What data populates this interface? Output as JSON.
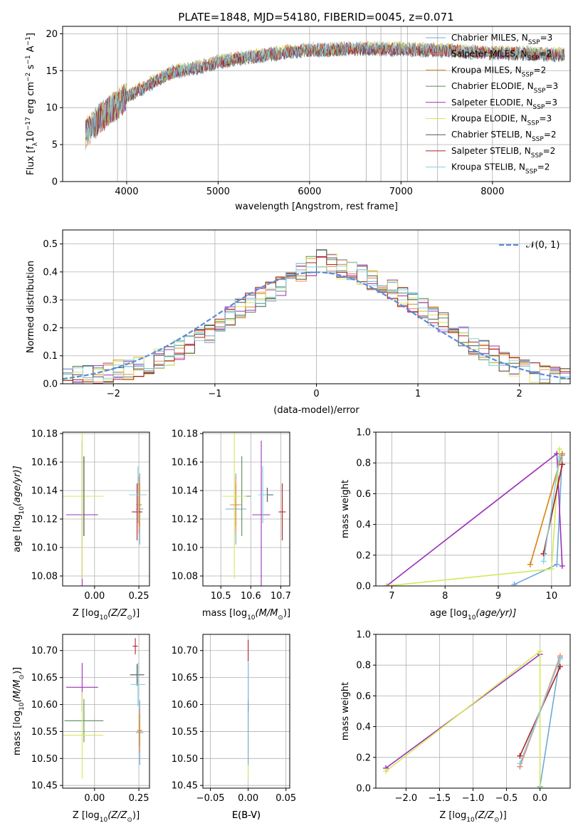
{
  "figure": {
    "title": "PLATE=1848, MJD=54180, FIBERID=0045, z=0.071"
  },
  "colors": {
    "Chabrier MILES": "#6fa8dc",
    "Salpeter MILES": "#f08a60",
    "Kroupa MILES": "#d98c1a",
    "Chabrier ELODIE": "#5c8a5c",
    "Salpeter ELODIE": "#9b30b8",
    "Kroupa ELODIE": "#d4e85a",
    "Chabrier STELIB": "#555555",
    "Salpeter STELIB": "#b22222",
    "Kroupa STELIB": "#88cfe0",
    "normal_curve": "#5b8bd6"
  },
  "chart_data": [
    {
      "id": "spectrum",
      "type": "line",
      "xlabel": "wavelength [Angstrom, rest frame]",
      "ylabel": "Flux [f",
      "ylabel_sub": "λ",
      "ylabel_rest": "10",
      "ylabel_sup1": "−17",
      "ylabel_tail": " erg cm",
      "ylabel_sup2": "−2",
      "ylabel_s": " s",
      "ylabel_sup3": "−1",
      "ylabel_A": " A",
      "ylabel_sup4": "−1",
      "ylabel_close": "]",
      "xlim": [
        3300,
        8850
      ],
      "ylim": [
        0,
        21
      ],
      "xticks": [
        "4000",
        "5000",
        "6000",
        "7000",
        "8000"
      ],
      "yticks": [
        "0",
        "5",
        "10",
        "15",
        "20"
      ],
      "xtick_values": [
        4000,
        5000,
        6000,
        7000,
        8000
      ],
      "ytick_values": [
        0,
        5,
        10,
        15,
        20
      ],
      "legend_position": "upper-right",
      "series": [
        {
          "name": "Chabrier MILES",
          "nssp": "3"
        },
        {
          "name": "Salpeter MILES",
          "nssp": "2"
        },
        {
          "name": "Kroupa MILES",
          "nssp": "2"
        },
        {
          "name": "Chabrier ELODIE",
          "nssp": "3"
        },
        {
          "name": "Salpeter ELODIE",
          "nssp": "3"
        },
        {
          "name": "Kroupa ELODIE",
          "nssp": "3"
        },
        {
          "name": "Chabrier STELIB",
          "nssp": "2"
        },
        {
          "name": "Salpeter STELIB",
          "nssp": "2"
        },
        {
          "name": "Kroupa STELIB",
          "nssp": "2"
        }
      ],
      "nssp_label": "N",
      "nssp_sub": "SSP",
      "vlines": [
        3900,
        6620,
        6780,
        7070,
        7400
      ],
      "continuum_x": [
        3550,
        3700,
        3900,
        4000,
        4300,
        4500,
        4800,
        5000,
        5300,
        5600,
        5800,
        6000,
        6300,
        6600,
        7000,
        7400,
        7800,
        8200,
        8700
      ],
      "continuum_y": [
        6.5,
        8.5,
        10.5,
        11.5,
        13.5,
        14.8,
        15.5,
        16.2,
        16.8,
        17.3,
        17.6,
        17.8,
        17.9,
        18.0,
        17.9,
        17.8,
        17.5,
        17.4,
        17.2
      ]
    },
    {
      "id": "histogram",
      "type": "bar",
      "xlabel": "(data-model)/error",
      "ylabel": "Normed distribution",
      "xlim": [
        -2.5,
        2.5
      ],
      "ylim": [
        0,
        0.55
      ],
      "xticks": [
        "−2",
        "−1",
        "0",
        "1",
        "2"
      ],
      "yticks": [
        "0.0",
        "0.1",
        "0.2",
        "0.3",
        "0.4",
        "0.5"
      ],
      "xtick_values": [
        -2,
        -1,
        0,
        1,
        2
      ],
      "ytick_values": [
        0,
        0.1,
        0.2,
        0.3,
        0.4,
        0.5
      ],
      "legend": "𝒩(0, 1)",
      "legend_position": "upper-right",
      "bin_width": 0.1,
      "bin_start": -2.5,
      "base_values": [
        0.02,
        0.03,
        0.03,
        0.03,
        0.04,
        0.05,
        0.05,
        0.06,
        0.07,
        0.09,
        0.1,
        0.12,
        0.14,
        0.16,
        0.18,
        0.21,
        0.24,
        0.27,
        0.29,
        0.31,
        0.33,
        0.35,
        0.37,
        0.4,
        0.42,
        0.45,
        0.43,
        0.41,
        0.4,
        0.39,
        0.37,
        0.36,
        0.34,
        0.31,
        0.29,
        0.27,
        0.24,
        0.22,
        0.19,
        0.17,
        0.14,
        0.12,
        0.1,
        0.08,
        0.06,
        0.05,
        0.04,
        0.03,
        0.03,
        0.02
      ]
    },
    {
      "id": "age_vs_Z",
      "type": "scatter",
      "xlabel": "Z [log",
      "xlabel_sub": "10",
      "xlabel_rest": "(Z/Z",
      "xlabel_sub2": "⊙",
      "xlabel_end": ")]",
      "ylabel": "age  [log",
      "ylabel_sub": "10",
      "ylabel_rest": "(age/yr)]",
      "xlim": [
        -0.18,
        0.31
      ],
      "ylim": [
        10.073,
        10.181
      ],
      "xticks": [
        "0.00",
        "0.25"
      ],
      "xtick_values": [
        0.0,
        0.25
      ],
      "yticks": [
        "10.08",
        "10.10",
        "10.12",
        "10.14",
        "10.16",
        "10.18"
      ],
      "ytick_values": [
        10.08,
        10.1,
        10.12,
        10.14,
        10.16,
        10.18
      ],
      "points": [
        {
          "series": "Chabrier MILES",
          "x": 0.255,
          "y": 10.127,
          "xerr": 0.02,
          "yerr": 0.025
        },
        {
          "series": "Salpeter MILES",
          "x": 0.25,
          "y": 10.13,
          "xerr": 0.015,
          "yerr": 0.02
        },
        {
          "series": "Kroupa MILES",
          "x": 0.255,
          "y": 10.13,
          "xerr": 0.012,
          "yerr": 0.015
        },
        {
          "series": "Chabrier ELODIE",
          "x": -0.06,
          "y": 10.136,
          "xerr": 0.0,
          "yerr": 0.028
        },
        {
          "series": "Salpeter ELODIE",
          "x": -0.07,
          "y": 10.123,
          "xerr": 0.09,
          "yerr": 0.052
        },
        {
          "series": "Kroupa ELODIE",
          "x": -0.07,
          "y": 10.136,
          "xerr": 0.12,
          "yerr": 0.058
        },
        {
          "series": "Chabrier STELIB",
          "x": -0.06,
          "y": 10.136,
          "xerr": 0.0,
          "yerr": 0.028
        },
        {
          "series": "Salpeter STELIB",
          "x": 0.24,
          "y": 10.125,
          "xerr": 0.03,
          "yerr": 0.02
        },
        {
          "series": "Kroupa STELIB",
          "x": 0.245,
          "y": 10.137,
          "xerr": 0.05,
          "yerr": 0.02
        }
      ]
    },
    {
      "id": "age_vs_mass",
      "type": "scatter",
      "xlabel": "mass [log",
      "xlabel_sub": "10",
      "xlabel_rest": "(M/M",
      "xlabel_sub2": "⊙",
      "xlabel_end": ")]",
      "xlim": [
        10.44,
        10.73
      ],
      "ylim": [
        10.073,
        10.181
      ],
      "xticks": [
        "10.5",
        "10.6",
        "10.7"
      ],
      "xtick_values": [
        10.5,
        10.6,
        10.7
      ],
      "yticks": [
        "10.08",
        "10.10",
        "10.12",
        "10.14",
        "10.16",
        "10.18"
      ],
      "ytick_values": [
        10.08,
        10.1,
        10.12,
        10.14,
        10.16,
        10.18
      ],
      "points": [
        {
          "series": "Chabrier MILES",
          "x": 10.55,
          "y": 10.127,
          "xerr": 0.035,
          "yerr": 0.025
        },
        {
          "series": "Salpeter MILES",
          "x": 10.55,
          "y": 10.13,
          "xerr": 0.02,
          "yerr": 0.02
        },
        {
          "series": "Kroupa MILES",
          "x": 10.55,
          "y": 10.13,
          "xerr": 0.01,
          "yerr": 0.015
        },
        {
          "series": "Chabrier ELODIE",
          "x": 10.57,
          "y": 10.136,
          "xerr": 0.03,
          "yerr": 0.028
        },
        {
          "series": "Salpeter ELODIE",
          "x": 10.635,
          "y": 10.123,
          "xerr": 0.03,
          "yerr": 0.052
        },
        {
          "series": "Kroupa ELODIE",
          "x": 10.545,
          "y": 10.136,
          "xerr": 0.04,
          "yerr": 0.058
        },
        {
          "series": "Chabrier STELIB",
          "x": 10.655,
          "y": 10.137,
          "xerr": 0.02,
          "yerr": 0.005
        },
        {
          "series": "Salpeter STELIB",
          "x": 10.705,
          "y": 10.125,
          "xerr": 0.012,
          "yerr": 0.02
        },
        {
          "series": "Kroupa STELIB",
          "x": 10.64,
          "y": 10.137,
          "xerr": 0.015,
          "yerr": 0.02
        }
      ]
    },
    {
      "id": "mass_weight_vs_age",
      "type": "line",
      "xlabel": "age  [log",
      "xlabel_sub": "10",
      "xlabel_rest": "(age/yr)]",
      "ylabel": "mass weight",
      "xlim": [
        6.7,
        10.35
      ],
      "ylim": [
        0,
        1.0
      ],
      "xticks": [
        "7",
        "8",
        "9",
        "10"
      ],
      "xtick_values": [
        7,
        8,
        9,
        10
      ],
      "yticks": [
        "0.0",
        "0.2",
        "0.4",
        "0.6",
        "0.8",
        "1.0"
      ],
      "ytick_values": [
        0,
        0.2,
        0.4,
        0.6,
        0.8,
        1.0
      ],
      "series": [
        {
          "name": "Chabrier MILES",
          "x": [
            9.3,
            10.1,
            10.2
          ],
          "y": [
            0.01,
            0.14,
            0.85
          ]
        },
        {
          "name": "Salpeter MILES",
          "x": [
            9.6,
            10.2
          ],
          "y": [
            0.14,
            0.86
          ]
        },
        {
          "name": "Kroupa MILES",
          "x": [
            9.6,
            10.2
          ],
          "y": [
            0.14,
            0.86
          ]
        },
        {
          "name": "Salpeter ELODIE",
          "x": [
            6.9,
            10.1,
            10.2
          ],
          "y": [
            0.0,
            0.86,
            0.13
          ]
        },
        {
          "name": "Kroupa ELODIE",
          "x": [
            6.9,
            10.0,
            10.15
          ],
          "y": [
            0.0,
            0.11,
            0.89
          ]
        },
        {
          "name": "Chabrier STELIB",
          "x": [
            9.85,
            10.2
          ],
          "y": [
            0.21,
            0.79
          ]
        },
        {
          "name": "Salpeter STELIB",
          "x": [
            9.85,
            10.2
          ],
          "y": [
            0.21,
            0.79
          ]
        },
        {
          "name": "Kroupa STELIB",
          "x": [
            9.85,
            10.15
          ],
          "y": [
            0.16,
            0.84
          ]
        }
      ]
    },
    {
      "id": "mass_vs_Z",
      "type": "scatter",
      "xlabel": "Z [log",
      "xlabel_sub": "10",
      "xlabel_rest": "(Z/Z",
      "xlabel_sub2": "⊙",
      "xlabel_end": ")]",
      "ylabel": "mass [log",
      "ylabel_sub": "10",
      "ylabel_rest": "(M/M",
      "ylabel_sub2": "⊙",
      "ylabel_end": ")]",
      "xlim": [
        -0.18,
        0.31
      ],
      "ylim": [
        10.445,
        10.73
      ],
      "xticks": [
        "0.00",
        "0.25"
      ],
      "xtick_values": [
        0.0,
        0.25
      ],
      "yticks": [
        "10.45",
        "10.50",
        "10.55",
        "10.60",
        "10.65",
        "10.70"
      ],
      "ytick_values": [
        10.45,
        10.5,
        10.55,
        10.6,
        10.65,
        10.7
      ],
      "points": [
        {
          "series": "Chabrier MILES",
          "x": 0.255,
          "y": 10.548,
          "xerr": 0.02,
          "yerr": 0.06
        },
        {
          "series": "Salpeter MILES",
          "x": 0.255,
          "y": 10.552,
          "xerr": 0.015,
          "yerr": 0.04
        },
        {
          "series": "Kroupa MILES",
          "x": 0.255,
          "y": 10.552,
          "xerr": 0.012,
          "yerr": 0.03
        },
        {
          "series": "Chabrier ELODIE",
          "x": -0.06,
          "y": 10.57,
          "xerr": 0.11,
          "yerr": 0.04
        },
        {
          "series": "Salpeter ELODIE",
          "x": -0.07,
          "y": 10.632,
          "xerr": 0.09,
          "yerr": 0.045
        },
        {
          "series": "Kroupa ELODIE",
          "x": -0.07,
          "y": 10.543,
          "xerr": 0.12,
          "yerr": 0.08
        },
        {
          "series": "Chabrier STELIB",
          "x": 0.24,
          "y": 10.655,
          "xerr": 0.04,
          "yerr": 0.02
        },
        {
          "series": "Salpeter STELIB",
          "x": 0.23,
          "y": 10.708,
          "xerr": 0.015,
          "yerr": 0.015
        },
        {
          "series": "Kroupa STELIB",
          "x": 0.245,
          "y": 10.637,
          "xerr": 0.04,
          "yerr": 0.04
        }
      ]
    },
    {
      "id": "mass_vs_ebv",
      "type": "scatter",
      "xlabel": "E(B-V)",
      "xlim": [
        -0.06,
        0.055
      ],
      "ylim": [
        10.445,
        10.73
      ],
      "xticks": [
        "−0.05",
        "0.00",
        "0.05"
      ],
      "xtick_values": [
        -0.05,
        0.0,
        0.05
      ],
      "yticks": [
        "10.45",
        "10.50",
        "10.55",
        "10.60",
        "10.65",
        "10.70"
      ],
      "ytick_values": [
        10.45,
        10.5,
        10.55,
        10.6,
        10.65,
        10.7
      ],
      "points": [
        {
          "series": "Kroupa ELODIE",
          "x": 0.0,
          "y": 10.543,
          "xerr": 0.0,
          "yerr": 0.08
        },
        {
          "series": "Salpeter ELODIE",
          "x": 0.0,
          "y": 10.632,
          "xerr": 0.0,
          "yerr": 0.045
        },
        {
          "series": "Salpeter STELIB",
          "x": 0.0,
          "y": 10.7,
          "xerr": 0.0,
          "yerr": 0.02
        },
        {
          "series": "Kroupa STELIB",
          "x": 0.0,
          "y": 10.637,
          "xerr": 0.0,
          "yerr": 0.04
        },
        {
          "series": "Chabrier MILES",
          "x": 0.0,
          "y": 10.548,
          "xerr": 0.0,
          "yerr": 0.06
        }
      ]
    },
    {
      "id": "mass_weight_vs_Z",
      "type": "line",
      "xlabel": "Z [log",
      "xlabel_sub": "10",
      "xlabel_rest": "(Z/Z",
      "xlabel_sub2": "⊙",
      "xlabel_end": ")]",
      "ylabel": "mass weight",
      "xlim": [
        -2.45,
        0.45
      ],
      "ylim": [
        0,
        1.0
      ],
      "xticks": [
        "−2.0",
        "−1.5",
        "−1.0",
        "−0.5",
        "0.0"
      ],
      "xtick_values": [
        -2.0,
        -1.5,
        -1.0,
        -0.5,
        0.0
      ],
      "yticks": [
        "0.0",
        "0.2",
        "0.4",
        "0.6",
        "0.8",
        "1.0"
      ],
      "ytick_values": [
        0,
        0.2,
        0.4,
        0.6,
        0.8,
        1.0
      ],
      "series": [
        {
          "name": "Chabrier MILES",
          "x": [
            0.0,
            0.3,
            -0.3
          ],
          "y": [
            0.01,
            0.85,
            0.14
          ]
        },
        {
          "name": "Salpeter MILES",
          "x": [
            -0.3,
            0.3
          ],
          "y": [
            0.14,
            0.86
          ]
        },
        {
          "name": "Salpeter ELODIE",
          "x": [
            -2.3,
            0.0
          ],
          "y": [
            0.13,
            0.87
          ]
        },
        {
          "name": "Kroupa ELODIE",
          "x": [
            -2.3,
            0.0,
            0.0
          ],
          "y": [
            0.11,
            0.89,
            0.0
          ]
        },
        {
          "name": "Salpeter STELIB",
          "x": [
            -0.3,
            0.3
          ],
          "y": [
            0.21,
            0.79
          ]
        },
        {
          "name": "Kroupa STELIB",
          "x": [
            -0.3,
            0.3
          ],
          "y": [
            0.16,
            0.84
          ]
        }
      ]
    }
  ]
}
